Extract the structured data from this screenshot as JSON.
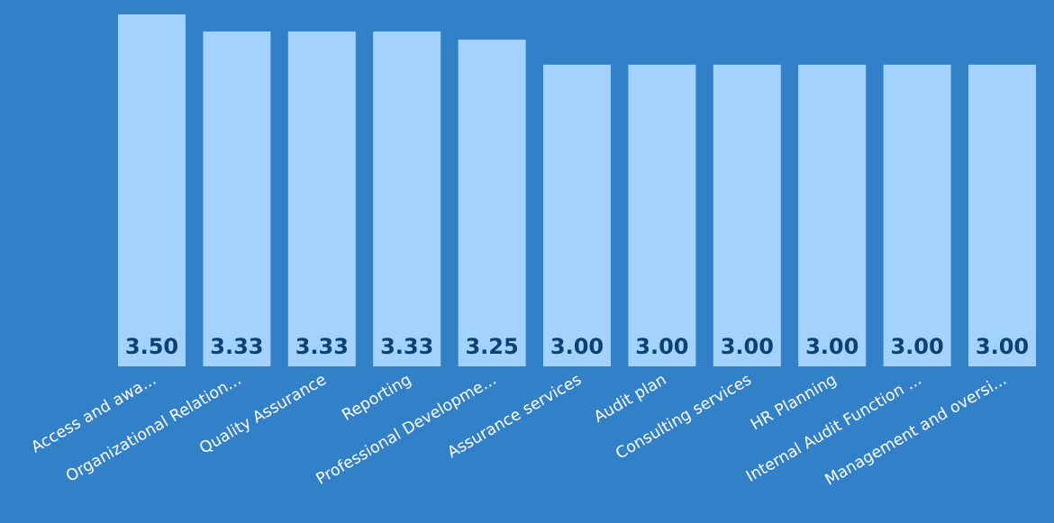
{
  "chart_data": {
    "type": "bar",
    "categories": [
      "Access and awa...",
      "Organizational Relation...",
      "Quality Assurance",
      "Reporting",
      "Professional Developme...",
      "Assurance services",
      "Audit plan",
      "Consulting services",
      "HR Planning",
      "Internal Audit Function ...",
      "Management and oversi..."
    ],
    "values": [
      3.5,
      3.33,
      3.33,
      3.33,
      3.25,
      3.0,
      3.0,
      3.0,
      3.0,
      3.0,
      3.0
    ],
    "value_labels": [
      "3.50",
      "3.33",
      "3.33",
      "3.33",
      "3.25",
      "3.00",
      "3.00",
      "3.00",
      "3.00",
      "3.00",
      "3.00"
    ],
    "ylim": [
      0,
      3.5
    ],
    "grid": false,
    "legend": "none",
    "colors": {
      "background": "#3280c8",
      "bar": "#a3d2fe",
      "value_label": "#0e4170",
      "category_label": "#ffffff"
    }
  }
}
